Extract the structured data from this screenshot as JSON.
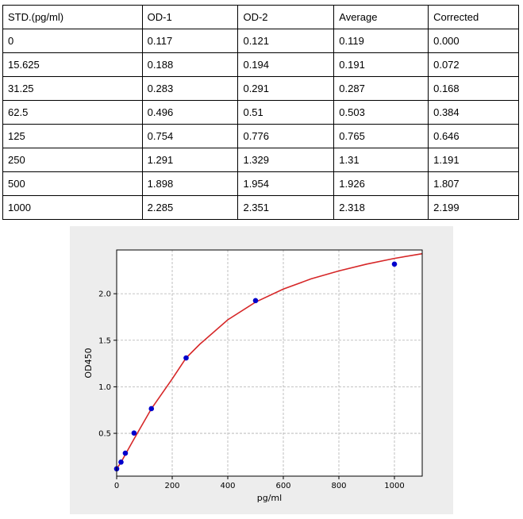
{
  "table": {
    "headers": [
      "STD.(pg/ml)",
      "OD-1",
      "OD-2",
      "Average",
      "Corrected"
    ],
    "rows": [
      [
        "0",
        "0.117",
        "0.121",
        "0.119",
        "0.000"
      ],
      [
        "15.625",
        "0.188",
        "0.194",
        "0.191",
        "0.072"
      ],
      [
        "31.25",
        "0.283",
        "0.291",
        "0.287",
        "0.168"
      ],
      [
        "62.5",
        "0.496",
        "0.51",
        "0.503",
        "0.384"
      ],
      [
        "125",
        "0.754",
        "0.776",
        "0.765",
        "0.646"
      ],
      [
        "250",
        "1.291",
        "1.329",
        "1.31",
        "1.191"
      ],
      [
        "500",
        "1.898",
        "1.954",
        "1.926",
        "1.807"
      ],
      [
        "1000",
        "2.285",
        "2.351",
        "2.318",
        "2.199"
      ]
    ]
  },
  "chart_data": {
    "type": "scatter",
    "xlabel": "pg/ml",
    "ylabel": "OD450",
    "xlim": [
      0,
      1100
    ],
    "ylim": [
      0.04,
      2.47
    ],
    "x_ticks": [
      0,
      200,
      400,
      600,
      800,
      1000
    ],
    "y_ticks": [
      0.5,
      1.0,
      1.5,
      2.0
    ],
    "grid": true,
    "series": [
      {
        "x": [
          0,
          15.625,
          31.25,
          62.5,
          125,
          250,
          500,
          1000
        ],
        "y": [
          0.119,
          0.191,
          0.287,
          0.503,
          0.765,
          1.31,
          1.926,
          2.318
        ],
        "marker_color": "#0000cc"
      }
    ],
    "fit_curve": {
      "color": "#d62728",
      "x": [
        0,
        15.625,
        31.25,
        62.5,
        125,
        200,
        250,
        300,
        400,
        500,
        600,
        700,
        800,
        900,
        1000,
        1100
      ],
      "y": [
        0.119,
        0.188,
        0.272,
        0.44,
        0.765,
        1.085,
        1.31,
        1.46,
        1.72,
        1.91,
        2.05,
        2.16,
        2.245,
        2.318,
        2.38,
        2.43
      ]
    }
  }
}
